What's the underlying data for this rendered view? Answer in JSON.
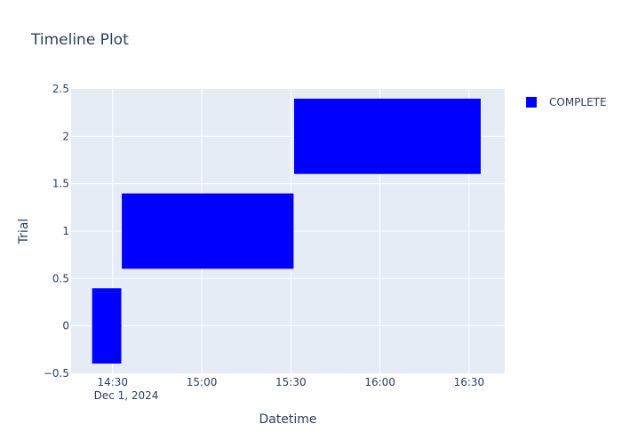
{
  "chart_data": {
    "type": "bar",
    "orientation": "horizontal-timeline",
    "title": "Timeline Plot",
    "xlabel": "Datetime",
    "ylabel": "Trial",
    "x_type": "datetime",
    "x_date_label": "Dec 1, 2024",
    "x_range": [
      "2024-12-01T14:16:00",
      "2024-12-01T16:42:00"
    ],
    "x_ticks": [
      {
        "time": "2024-12-01T14:30:00",
        "label": "14:30"
      },
      {
        "time": "2024-12-01T15:00:00",
        "label": "15:00"
      },
      {
        "time": "2024-12-01T15:30:00",
        "label": "15:30"
      },
      {
        "time": "2024-12-01T16:00:00",
        "label": "16:00"
      },
      {
        "time": "2024-12-01T16:30:00",
        "label": "16:30"
      }
    ],
    "ylim": [
      -0.5,
      2.5
    ],
    "y_ticks": [
      {
        "value": -0.5,
        "label": "−0.5"
      },
      {
        "value": 0,
        "label": "0"
      },
      {
        "value": 0.5,
        "label": "0.5"
      },
      {
        "value": 1,
        "label": "1"
      },
      {
        "value": 1.5,
        "label": "1.5"
      },
      {
        "value": 2,
        "label": "2"
      },
      {
        "value": 2.5,
        "label": "2.5"
      }
    ],
    "grid": true,
    "legend_position": "top-right",
    "series": [
      {
        "name": "COMPLETE",
        "color": "#0000ff",
        "bars": [
          {
            "trial": 0,
            "start": "2024-12-01T14:23:00",
            "end": "2024-12-01T14:33:00"
          },
          {
            "trial": 1,
            "start": "2024-12-01T14:33:00",
            "end": "2024-12-01T15:31:00"
          },
          {
            "trial": 2,
            "start": "2024-12-01T15:31:00",
            "end": "2024-12-01T16:34:00"
          }
        ]
      }
    ],
    "colors": {
      "plot_bg": "#e5ecf6",
      "grid": "#ffffff",
      "text": "#2a3f5f",
      "tick_text": "#2a3f5f"
    }
  }
}
